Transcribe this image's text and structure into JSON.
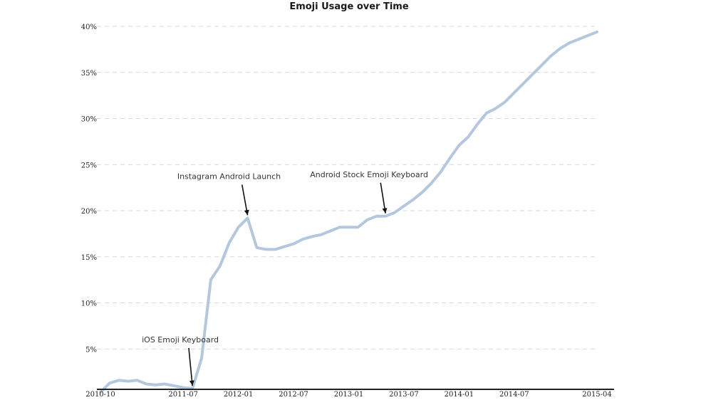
{
  "chart_data": {
    "type": "line",
    "title": "Emoji Usage over Time",
    "xlabel": "",
    "ylabel": "",
    "ylim": [
      0,
      40
    ],
    "yticks": [
      5,
      10,
      15,
      20,
      25,
      30,
      35,
      40
    ],
    "ytick_labels": [
      "5%",
      "10%",
      "15%",
      "20%",
      "25%",
      "30%",
      "35%",
      "40%"
    ],
    "xlim": [
      "2010-10",
      "2015-04"
    ],
    "xtick_labels": [
      "2010-10",
      "2011-07",
      "2012-01",
      "2012-07",
      "2013-01",
      "2013-07",
      "2014-01",
      "2014-07",
      "2015-04"
    ],
    "grid": true,
    "series_color": "#b3c8df",
    "series": [
      {
        "x": [
          "2010-10",
          "2010-11",
          "2010-12",
          "2011-01",
          "2011-02",
          "2011-03",
          "2011-04",
          "2011-05",
          "2011-06",
          "2011-07",
          "2011-08",
          "2011-09",
          "2011-10",
          "2011-11",
          "2011-12",
          "2012-01",
          "2012-02",
          "2012-03",
          "2012-04",
          "2012-05",
          "2012-06",
          "2012-07",
          "2012-08",
          "2012-09",
          "2012-10",
          "2012-11",
          "2012-12",
          "2013-01",
          "2013-02",
          "2013-03",
          "2013-04",
          "2013-05",
          "2013-06",
          "2013-07",
          "2013-08",
          "2013-09",
          "2013-10",
          "2013-11",
          "2013-12",
          "2014-01",
          "2014-02",
          "2014-03",
          "2014-04",
          "2014-05",
          "2014-06",
          "2014-07",
          "2014-08",
          "2014-09",
          "2014-10",
          "2014-11",
          "2014-12",
          "2015-01",
          "2015-02",
          "2015-03",
          "2015-04"
        ],
        "values": [
          0.3,
          1.3,
          1.6,
          1.5,
          1.6,
          1.2,
          1.1,
          1.2,
          1.0,
          0.8,
          0.7,
          4.0,
          12.5,
          14.0,
          16.5,
          18.2,
          19.2,
          16.0,
          15.8,
          15.8,
          16.1,
          16.4,
          16.9,
          17.2,
          17.4,
          17.8,
          18.2,
          18.2,
          18.2,
          19.0,
          19.4,
          19.4,
          19.8,
          20.5,
          21.2,
          22.0,
          23.0,
          24.2,
          25.7,
          27.1,
          28.0,
          29.4,
          30.6,
          31.1,
          31.8,
          32.8,
          33.8,
          34.8,
          35.8,
          36.8,
          37.6,
          38.2,
          38.6,
          39.0,
          39.4
        ]
      }
    ],
    "annotations": [
      {
        "text": "iOS Emoji Keyboard",
        "x": "2011-08",
        "y": 0.7
      },
      {
        "text": "Instagram Android Launch",
        "x": "2012-02",
        "y": 19.2
      },
      {
        "text": "Android Stock Emoji Keyboard",
        "x": "2013-05",
        "y": 19.4
      }
    ]
  }
}
